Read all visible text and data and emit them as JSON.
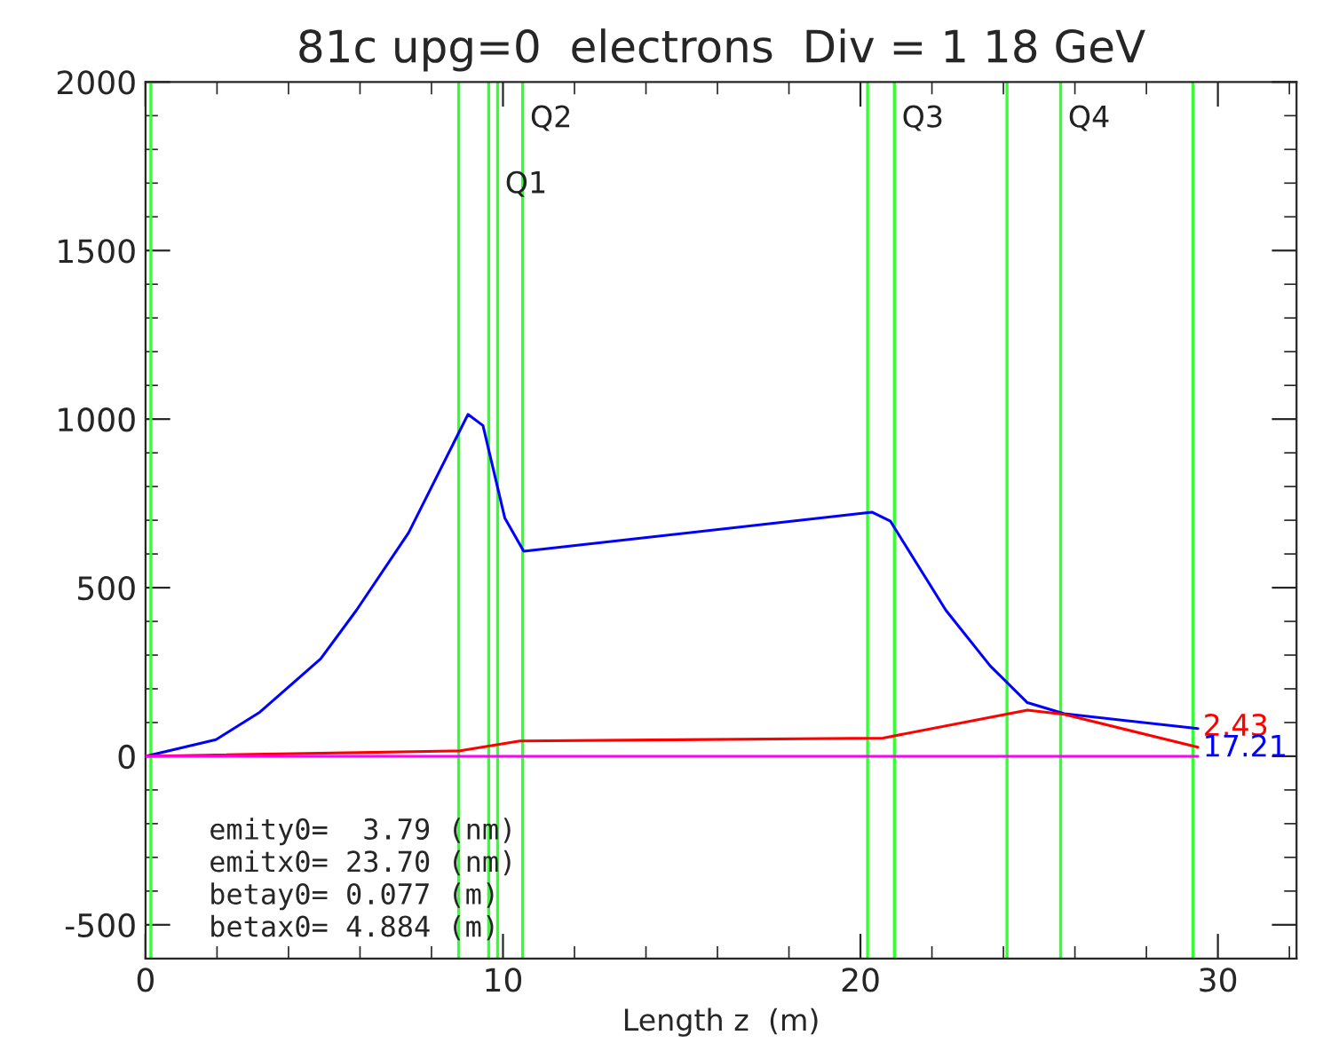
{
  "chart_data": {
    "type": "line",
    "title": "81c upg=0  electrons  Div = 1 18 GeV",
    "xlabel": "Length z  (m)",
    "xlim": [
      0,
      32.2
    ],
    "ylim": [
      -600,
      2000
    ],
    "xticks": [
      0,
      {
        "value": 2,
        "label": null
      },
      {
        "value": 4,
        "label": null
      },
      {
        "value": 6,
        "label": null
      },
      {
        "value": 8,
        "label": null
      },
      10,
      {
        "value": 12,
        "label": null
      },
      {
        "value": 14,
        "label": null
      },
      {
        "value": 16,
        "label": null
      },
      {
        "value": 18,
        "label": null
      },
      20,
      {
        "value": 22,
        "label": null
      },
      {
        "value": 24,
        "label": null
      },
      {
        "value": 26,
        "label": null
      },
      {
        "value": 28,
        "label": null
      },
      30,
      {
        "value": 32,
        "label": null
      }
    ],
    "yticks": [
      {
        "value": -600,
        "label": null
      },
      -500,
      {
        "value": -400,
        "label": null
      },
      {
        "value": -300,
        "label": null
      },
      {
        "value": -200,
        "label": null
      },
      {
        "value": -100,
        "label": null
      },
      0,
      {
        "value": 100,
        "label": null
      },
      {
        "value": 200,
        "label": null
      },
      {
        "value": 300,
        "label": null
      },
      {
        "value": 400,
        "label": null
      },
      500,
      {
        "value": 600,
        "label": null
      },
      {
        "value": 700,
        "label": null
      },
      {
        "value": 800,
        "label": null
      },
      {
        "value": 900,
        "label": null
      },
      1000,
      {
        "value": 1100,
        "label": null
      },
      {
        "value": 1200,
        "label": null
      },
      {
        "value": 1300,
        "label": null
      },
      {
        "value": 1400,
        "label": null
      },
      1500,
      {
        "value": 1600,
        "label": null
      },
      {
        "value": 1700,
        "label": null
      },
      {
        "value": 1800,
        "label": null
      },
      {
        "value": 1900,
        "label": null
      },
      2000
    ],
    "grid": false,
    "legend": false,
    "series": [
      {
        "color": "#0000ff",
        "x": [
          0,
          1.97,
          3.2,
          4.9,
          5.9,
          7.36,
          9.02,
          9.44,
          10.05,
          10.58,
          20.32,
          20.84,
          22.39,
          23.63,
          24.67,
          25.7,
          29.44
        ],
        "values": [
          0,
          49,
          131,
          289,
          433,
          663,
          1014,
          981,
          707,
          608,
          724,
          697,
          433,
          268,
          159,
          126,
          82
        ]
      },
      {
        "color": "#ff0000",
        "x": [
          0,
          8.8,
          10.47,
          20.63,
          24.67,
          25.7,
          29.44
        ],
        "values": [
          0,
          16,
          45,
          54,
          137,
          124,
          27
        ]
      },
      {
        "color": "#ff00ff",
        "x": [
          0,
          29.44
        ],
        "values": [
          0,
          0
        ]
      }
    ],
    "ref_lines": [
      {
        "axis": "x",
        "value": 0.15,
        "color": "#33ff33"
      },
      {
        "axis": "x",
        "value": 8.76,
        "color": "#33ff33"
      },
      {
        "axis": "x",
        "value": 9.6,
        "color": "#33ff33"
      },
      {
        "axis": "x",
        "value": 9.85,
        "color": "#33ff33"
      },
      {
        "axis": "x",
        "value": 10.55,
        "color": "#33ff33"
      },
      {
        "axis": "x",
        "value": 20.2,
        "color": "#33ff33"
      },
      {
        "axis": "x",
        "value": 20.95,
        "color": "#33ff33"
      },
      {
        "axis": "x",
        "value": 24.1,
        "color": "#33ff33"
      },
      {
        "axis": "x",
        "value": 25.6,
        "color": "#33ff33"
      },
      {
        "axis": "x",
        "value": 29.3,
        "color": "#33ff33"
      }
    ],
    "annotations": [
      {
        "text": "Q1",
        "x": 9.85,
        "y": 1695
      },
      {
        "text": "Q2",
        "x": 10.55,
        "y": 1890
      },
      {
        "text": "Q3",
        "x": 20.95,
        "y": 1890
      },
      {
        "text": "Q4",
        "x": 25.6,
        "y": 1890
      },
      {
        "text": "2.43",
        "x": 29.44,
        "y": 27
      },
      {
        "text": "17.21",
        "x": 29.44,
        "y": 82
      },
      "emity0=  3.79 (nm)",
      "emitx0= 23.70 (nm)",
      "betay0= 0.077 (m)",
      "betax0= 4.884 (m)"
    ]
  }
}
